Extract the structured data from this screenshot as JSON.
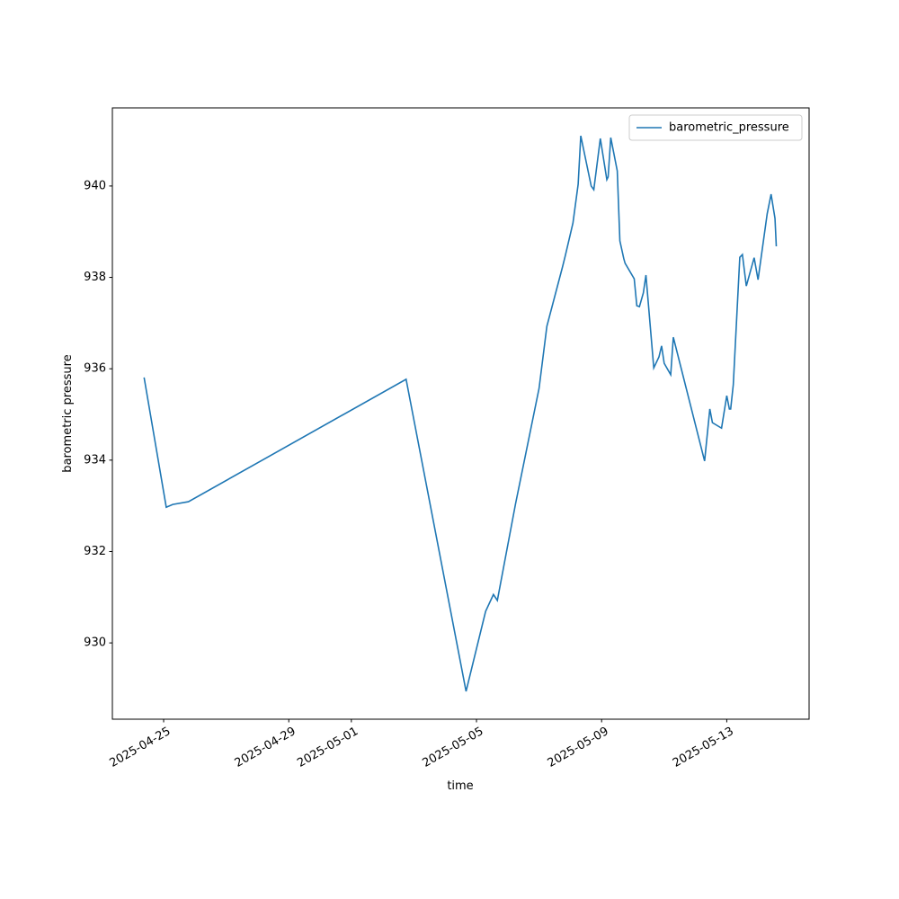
{
  "chart_data": {
    "type": "line",
    "xlabel": "time",
    "ylabel": "barometric pressure",
    "x": [
      "2025-04-24T09:00",
      "2025-04-25T02:00",
      "2025-04-25T07:00",
      "2025-04-25T19:00",
      "2025-05-02T18:00",
      "2025-05-04T16:00",
      "2025-05-05T07:00",
      "2025-05-05T13:00",
      "2025-05-05T16:00",
      "2025-05-06T06:00",
      "2025-05-07T00:00",
      "2025-05-07T06:00",
      "2025-05-07T18:00",
      "2025-05-07T20:00",
      "2025-05-08T02:00",
      "2025-05-08T06:00",
      "2025-05-08T08:00",
      "2025-05-08T16:00",
      "2025-05-08T18:00",
      "2025-05-08T23:00",
      "2025-05-09T04:00",
      "2025-05-09T05:00",
      "2025-05-09T07:00",
      "2025-05-09T12:00",
      "2025-05-09T14:00",
      "2025-05-09T17:00",
      "2025-05-09T18:00",
      "2025-05-10T01:00",
      "2025-05-10T03:00",
      "2025-05-10T05:00",
      "2025-05-10T08:00",
      "2025-05-10T10:00",
      "2025-05-10T16:00",
      "2025-05-10T20:00",
      "2025-05-10T22:00",
      "2025-05-11T00:00",
      "2025-05-11T05:00",
      "2025-05-11T07:00",
      "2025-05-12T07:00",
      "2025-05-12T11:00",
      "2025-05-12T13:00",
      "2025-05-12T20:00",
      "2025-05-13T00:00",
      "2025-05-13T02:00",
      "2025-05-13T03:00",
      "2025-05-13T05:00",
      "2025-05-13T10:00",
      "2025-05-13T12:00",
      "2025-05-13T15:00",
      "2025-05-13T21:00",
      "2025-05-14T00:00",
      "2025-05-14T07:00",
      "2025-05-14T10:00",
      "2025-05-14T13:00",
      "2025-05-14T14:00"
    ],
    "series": [
      {
        "name": "barometric_pressure",
        "color": "#1f77b4",
        "values": [
          935.81,
          932.97,
          933.03,
          933.09,
          935.77,
          928.94,
          930.69,
          931.06,
          930.93,
          933.05,
          935.57,
          936.93,
          938.23,
          938.46,
          939.19,
          940.04,
          941.1,
          940.0,
          939.92,
          941.04,
          940.14,
          940.2,
          941.06,
          940.33,
          938.8,
          938.41,
          938.31,
          937.97,
          937.38,
          937.36,
          937.66,
          938.05,
          936.02,
          936.26,
          936.5,
          936.12,
          935.87,
          936.69,
          933.98,
          935.12,
          934.82,
          934.7,
          935.41,
          935.12,
          935.12,
          935.65,
          938.44,
          938.5,
          937.81,
          938.43,
          937.95,
          939.39,
          939.82,
          939.29,
          938.68
        ]
      }
    ],
    "xlim": [
      "2025-04-23T08:40",
      "2025-05-15T15:10"
    ],
    "xticks": [
      "2025-04-25",
      "2025-04-29",
      "2025-05-01",
      "2025-05-05",
      "2025-05-09",
      "2025-05-13"
    ],
    "ylim": [
      928.33,
      941.71
    ],
    "yticks": [
      930,
      932,
      934,
      936,
      938,
      940
    ],
    "legend": "upper right"
  }
}
